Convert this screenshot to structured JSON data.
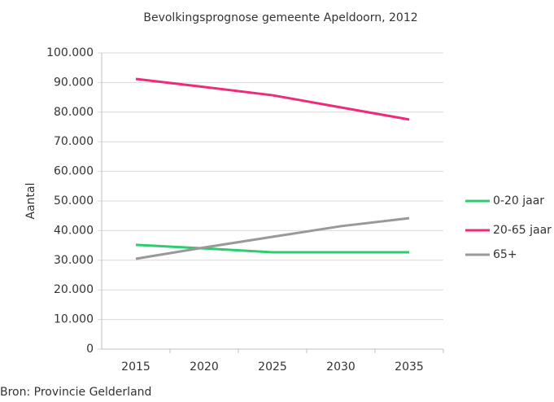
{
  "chart_data": {
    "type": "line",
    "title": "Bevolkingsprognose gemeente Apeldoorn, 2012",
    "y_label": "Aantal",
    "source": "Bron: Provincie Gelderland",
    "categories": [
      "2015",
      "2020",
      "2025",
      "2030",
      "2035"
    ],
    "series": [
      {
        "name": "0-20 jaar",
        "color": "#2ecc71",
        "values": [
          35200,
          34000,
          32700,
          32700,
          32700
        ]
      },
      {
        "name": "20-65 jaar",
        "color": "#ee2a7b",
        "values": [
          91200,
          88500,
          85700,
          81600,
          77500
        ]
      },
      {
        "name": "65+",
        "color": "#999999",
        "values": [
          30500,
          34300,
          37900,
          41500,
          44200
        ]
      }
    ],
    "ylim": [
      0,
      100000
    ],
    "yticks": [
      0,
      {
        "value": 10000,
        "label": "10.000"
      },
      {
        "value": 20000,
        "label": "20.000"
      },
      {
        "value": 30000,
        "label": "30.000"
      },
      {
        "value": 40000,
        "label": "40.000"
      },
      {
        "value": 50000,
        "label": "50.000"
      },
      {
        "value": 60000,
        "label": "60.000"
      },
      {
        "value": 70000,
        "label": "70.000"
      },
      {
        "value": 80000,
        "label": "80.000"
      },
      {
        "value": 90000,
        "label": "90.000"
      },
      {
        "value": 100000,
        "label": "100.000"
      }
    ],
    "grid": true,
    "legend": "right"
  }
}
